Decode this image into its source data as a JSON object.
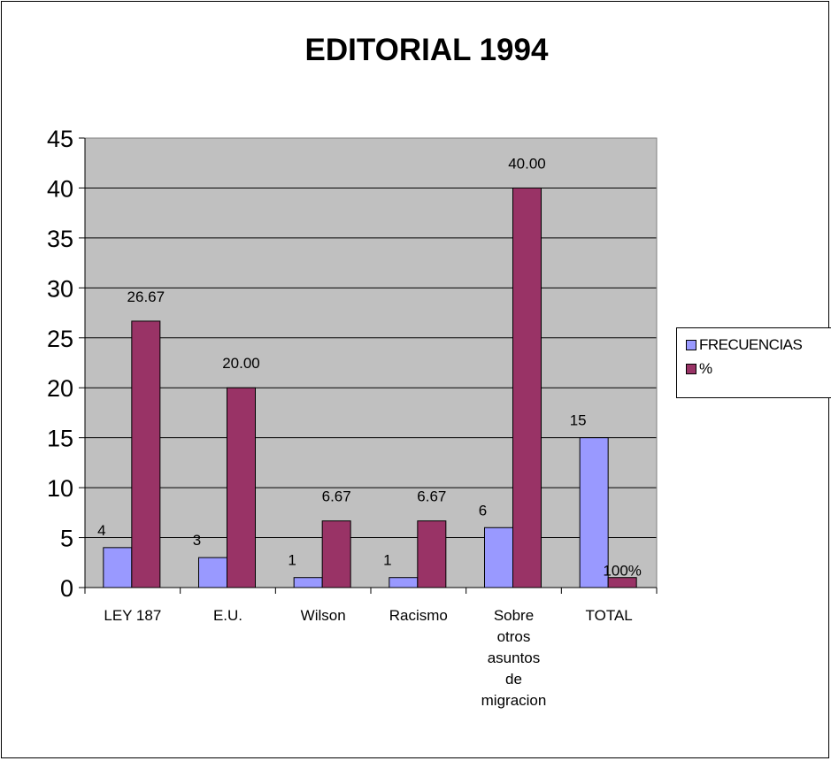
{
  "chart_data": {
    "type": "bar",
    "title": "EDITORIAL 1994",
    "xlabel": "",
    "ylabel": "",
    "ylim": [
      0,
      45
    ],
    "y_ticks": [
      "0",
      "5",
      "10",
      "15",
      "20",
      "25",
      "30",
      "35",
      "40",
      "45"
    ],
    "grid": true,
    "legend_position": "right",
    "plot_background": "#c0c0c0",
    "categories": [
      [
        "LEY 187"
      ],
      [
        "E.U."
      ],
      [
        "Wilson"
      ],
      [
        "Racismo"
      ],
      [
        "Sobre",
        "otros",
        "asuntos",
        "de",
        "migracion"
      ],
      [
        "TOTAL"
      ]
    ],
    "series": [
      {
        "name": "FRECUENCIAS",
        "color": "#9999ff",
        "values": [
          4,
          3,
          1,
          1,
          6,
          15
        ],
        "labels": [
          "4",
          "3",
          "1",
          "1",
          "6",
          "15"
        ]
      },
      {
        "name": "%",
        "color": "#993366",
        "values": [
          26.67,
          20.0,
          6.67,
          6.67,
          40.0,
          1
        ],
        "labels": [
          "26.67",
          "20.00",
          "6.67",
          "6.67",
          "40.00",
          "100%"
        ]
      }
    ]
  }
}
